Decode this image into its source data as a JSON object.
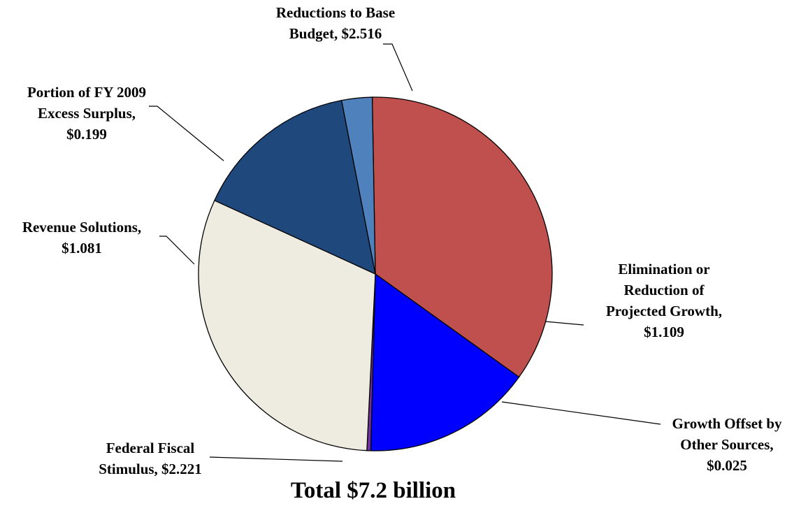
{
  "chart_data": {
    "type": "pie",
    "title": "",
    "total_label": "Total $7.2 billion",
    "slices": [
      {
        "name": "Reductions to Base Budget",
        "value": 2.516,
        "label_lines": [
          "Reductions to Base",
          "Budget, $2.516"
        ],
        "color": "#c0504d"
      },
      {
        "name": "Elimination or Reduction of Projected Growth",
        "value": 1.109,
        "label_lines": [
          "Elimination or",
          "Reduction of",
          "Projected Growth,",
          "$1.109"
        ],
        "color": "#0000ff"
      },
      {
        "name": "Growth Offset by Other Sources",
        "value": 0.025,
        "label_lines": [
          "Growth Offset by",
          "Other Sources,",
          "$0.025"
        ],
        "color": "#7030a0"
      },
      {
        "name": "Federal Fiscal Stimulus",
        "value": 2.221,
        "label_lines": [
          "Federal Fiscal",
          "Stimulus, $2.221"
        ],
        "color": "#eeece1"
      },
      {
        "name": "Revenue Solutions",
        "value": 1.081,
        "label_lines": [
          "Revenue Solutions,",
          "$1.081"
        ],
        "color": "#1f497d"
      },
      {
        "name": "Portion of FY 2009 Excess Surplus",
        "value": 0.199,
        "label_lines": [
          "Portion of FY 2009",
          "Excess Surplus,",
          "$0.199"
        ],
        "color": "#4f81bd"
      }
    ]
  }
}
